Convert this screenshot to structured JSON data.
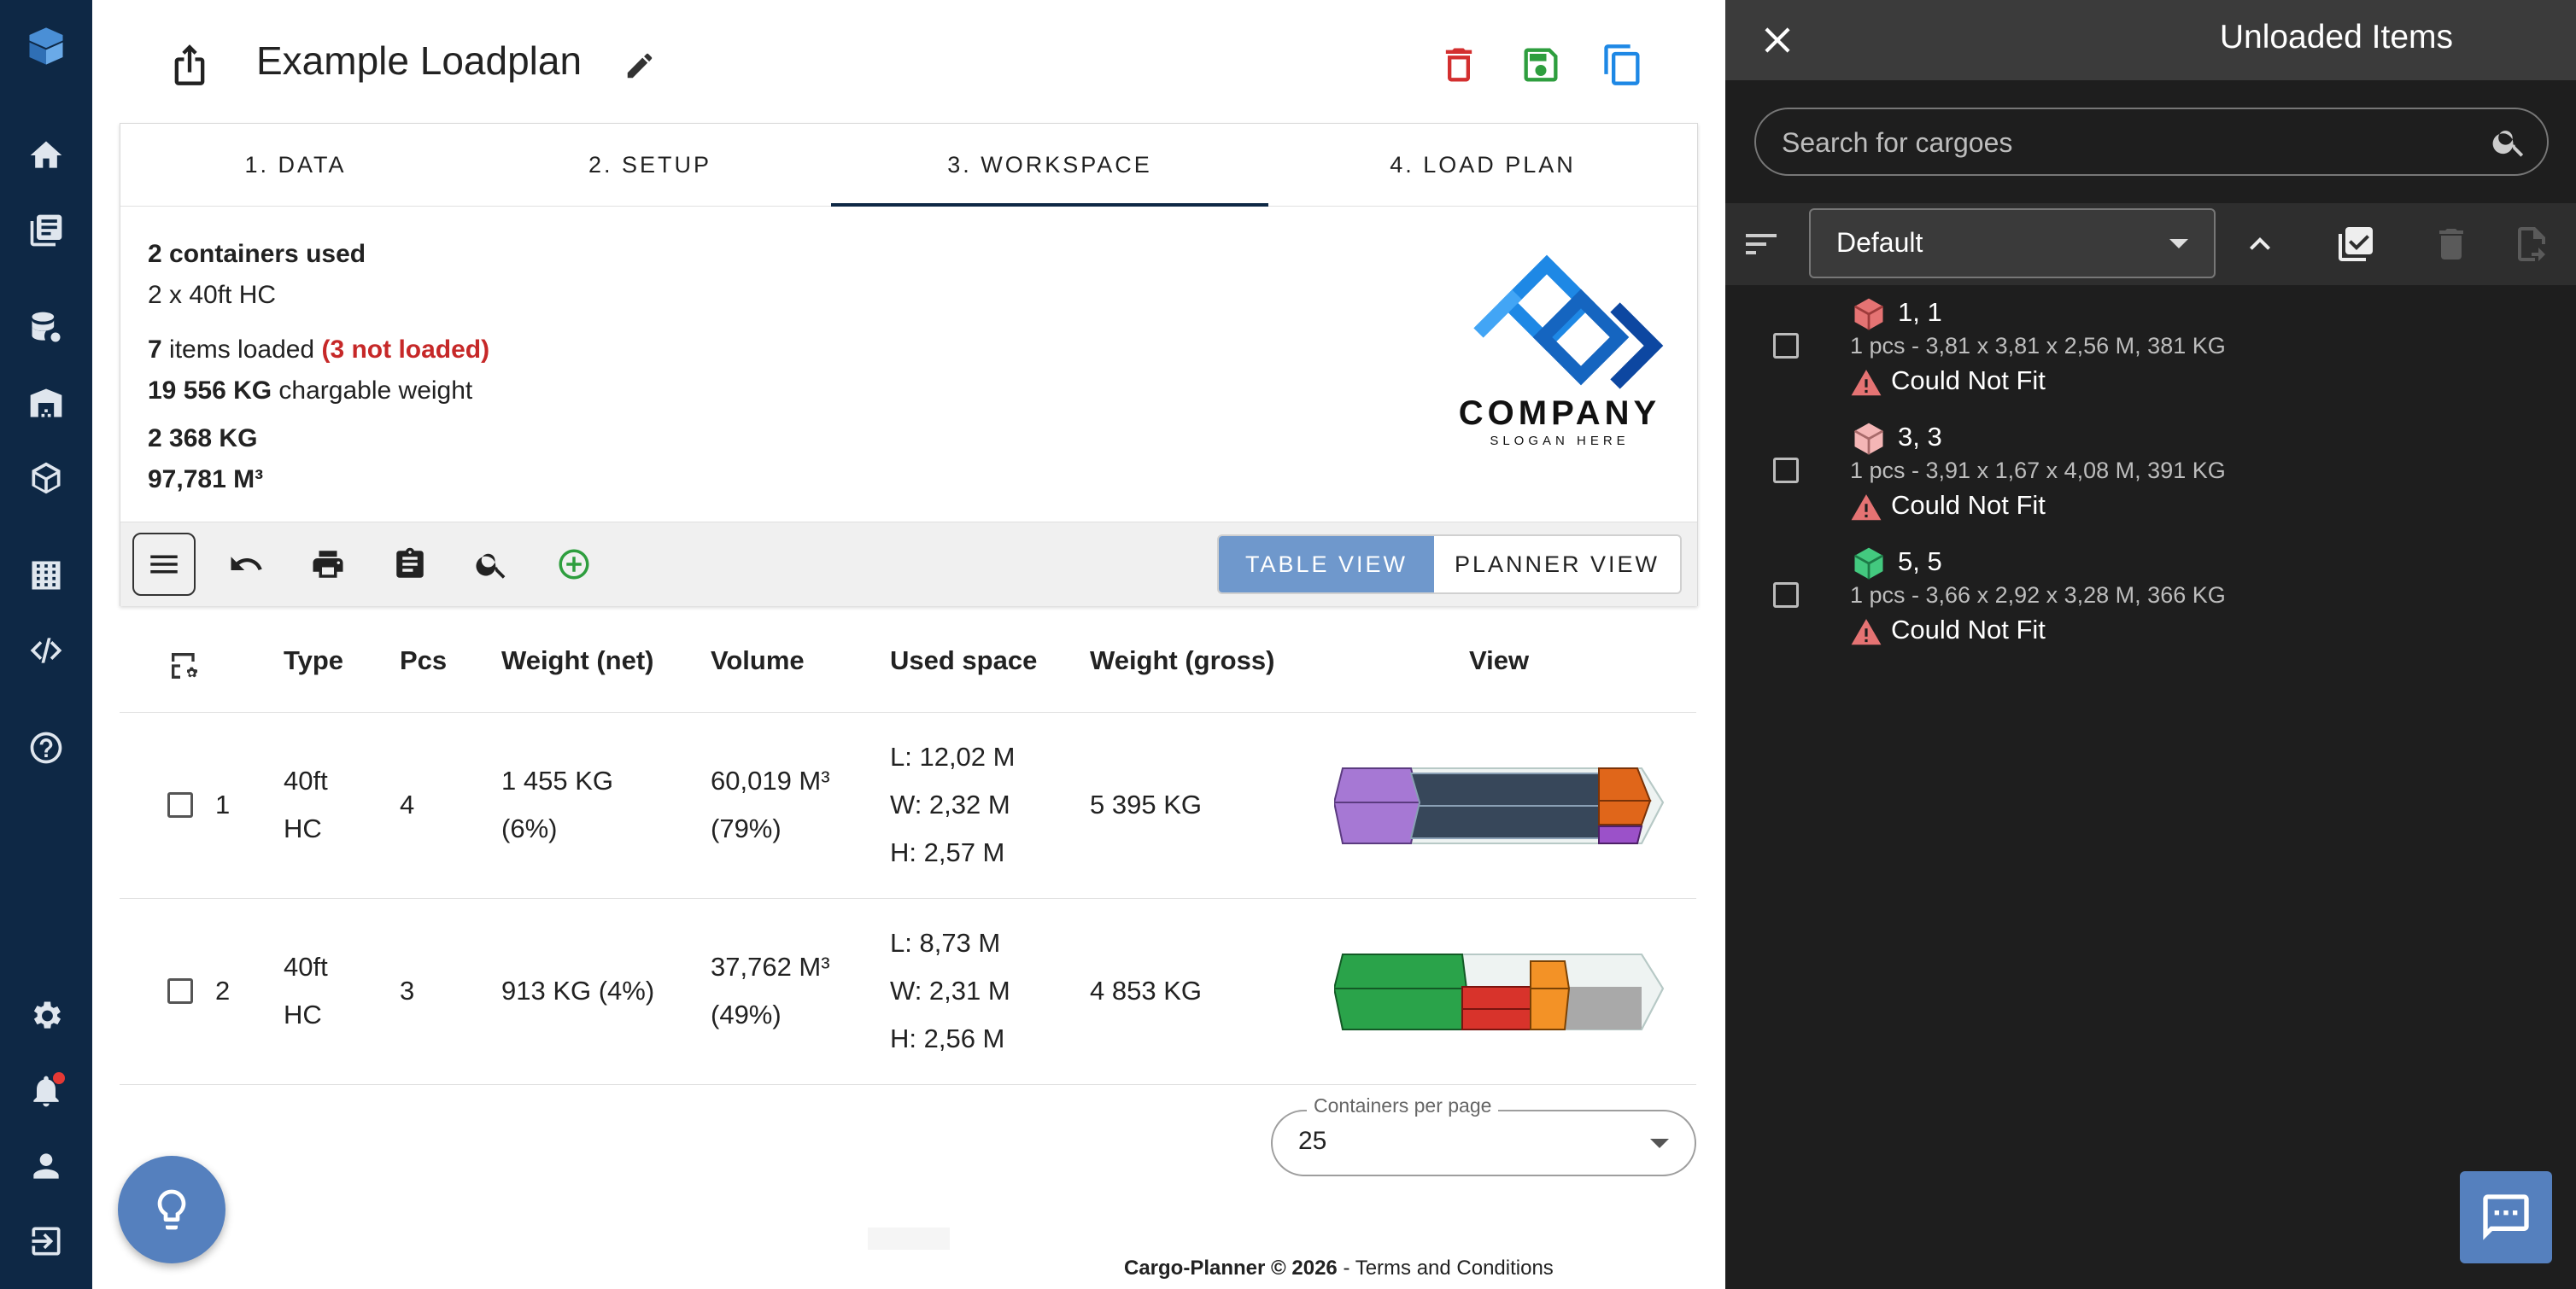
{
  "nav": {
    "icons": [
      "cargo-planner-logo-icon",
      "home-icon",
      "documents-icon",
      "database-settings-icon",
      "warehouse-icon",
      "box-icon",
      "building-icon",
      "code-icon",
      "help-icon",
      "settings-icon",
      "bell-icon",
      "user-icon",
      "logout-icon"
    ]
  },
  "header": {
    "title": "Example Loadplan"
  },
  "tabs": [
    "1. DATA",
    "2. SETUP",
    "3. WORKSPACE",
    "4. LOAD PLAN"
  ],
  "active_tab": "3. WORKSPACE",
  "summary": {
    "containers_used": "2 containers used",
    "container_type": "2 x 40ft HC",
    "items_loaded_count": "7",
    "items_loaded_text": " items loaded ",
    "not_loaded": "(3 not loaded)",
    "chargeable_weight_value": "19 556 KG",
    "chargeable_weight_text": " chargable weight",
    "total_weight": "2 368 KG",
    "total_volume": "97,781 M³"
  },
  "company_logo": {
    "name": "COMPANY",
    "slogan": "SLOGAN HERE"
  },
  "toolbar": {
    "table_view": "TABLE VIEW",
    "planner_view": "PLANNER VIEW"
  },
  "table": {
    "columns": [
      "Type",
      "Pcs",
      "Weight (net)",
      "Volume",
      "Used space",
      "Weight (gross)",
      "View"
    ],
    "rows": [
      {
        "index": "1",
        "type_line1": "40ft",
        "type_line2": "HC",
        "pcs": "4",
        "weight_net_line1": "1 455 KG",
        "weight_net_line2": "(6%)",
        "volume_line1": "60,019 M³",
        "volume_line2": "(79%)",
        "used_l": "L: 12,02 M",
        "used_w": "W: 2,32 M",
        "used_h": "H: 2,57 M",
        "weight_gross": "5 395 KG"
      },
      {
        "index": "2",
        "type_line1": "40ft",
        "type_line2": "HC",
        "pcs": "3",
        "weight_net_line1": "913 KG (4%)",
        "weight_net_line2": "",
        "volume_line1": "37,762 M³",
        "volume_line2": "(49%)",
        "used_l": "L: 8,73 M",
        "used_w": "W: 2,31 M",
        "used_h": "H: 2,56 M",
        "weight_gross": "4 853 KG"
      }
    ]
  },
  "pagination": {
    "label": "Containers per page",
    "value": "25"
  },
  "footer": {
    "brand": "Cargo-Planner © 2026",
    "separator": " - ",
    "link": "Terms and Conditions"
  },
  "drawer": {
    "title": "Unloaded Items",
    "search_placeholder": "Search for cargoes",
    "sort_value": "Default",
    "items": [
      {
        "name": "1, 1",
        "desc": "1 pcs - 3,81 x 3,81 x 2,56 M, 381 KG",
        "status": "Could Not Fit",
        "color": "#e57373"
      },
      {
        "name": "3, 3",
        "desc": "1 pcs - 3,91 x 1,67 x 4,08 M, 391 KG",
        "status": "Could Not Fit",
        "color": "#f4b6b6"
      },
      {
        "name": "5, 5",
        "desc": "1 pcs - 3,66 x 2,92 x 3,28 M, 366 KG",
        "status": "Could Not Fit",
        "color": "#43c97f"
      }
    ]
  },
  "colors": {
    "nav_bg": "#0e2845",
    "accent_blue": "#5580be",
    "danger_red": "#d32f2f",
    "save_green": "#2e9e3e",
    "copy_blue": "#1e88e5",
    "warning_red": "#e57373"
  }
}
